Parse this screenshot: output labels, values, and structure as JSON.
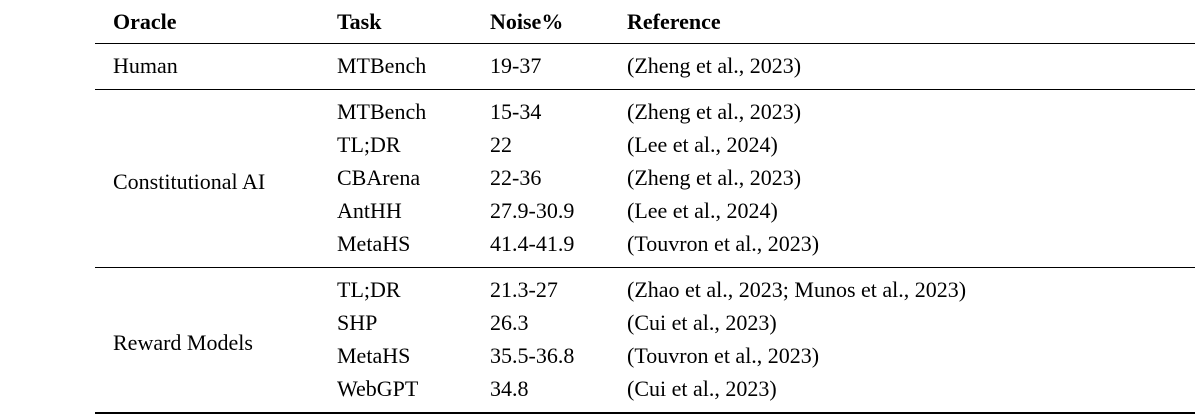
{
  "table": {
    "headers": [
      "Oracle",
      "Task",
      "Noise%",
      "Reference"
    ],
    "groups": [
      {
        "oracle": "Human",
        "rows": [
          {
            "task": "MTBench",
            "noise": "19-37",
            "reference": "(Zheng et al., 2023)"
          }
        ]
      },
      {
        "oracle": "Constitutional AI",
        "rows": [
          {
            "task": "MTBench",
            "noise": "15-34",
            "reference": "(Zheng et al., 2023)"
          },
          {
            "task": "TL;DR",
            "noise": "22",
            "reference": "(Lee et al., 2024)"
          },
          {
            "task": "CBArena",
            "noise": "22-36",
            "reference": "(Zheng et al., 2023)"
          },
          {
            "task": "AntHH",
            "noise": "27.9-30.9",
            "reference": "(Lee et al., 2024)"
          },
          {
            "task": "MetaHS",
            "noise": "41.4-41.9",
            "reference": "(Touvron et al., 2023)"
          }
        ]
      },
      {
        "oracle": "Reward Models",
        "rows": [
          {
            "task": "TL;DR",
            "noise": "21.3-27",
            "reference": "(Zhao et al., 2023; Munos et al., 2023)"
          },
          {
            "task": "SHP",
            "noise": "26.3",
            "reference": "(Cui et al., 2023)"
          },
          {
            "task": "MetaHS",
            "noise": "35.5-36.8",
            "reference": "(Touvron et al., 2023)"
          },
          {
            "task": "WebGPT",
            "noise": "34.8",
            "reference": "(Cui et al., 2023)"
          }
        ]
      }
    ]
  }
}
